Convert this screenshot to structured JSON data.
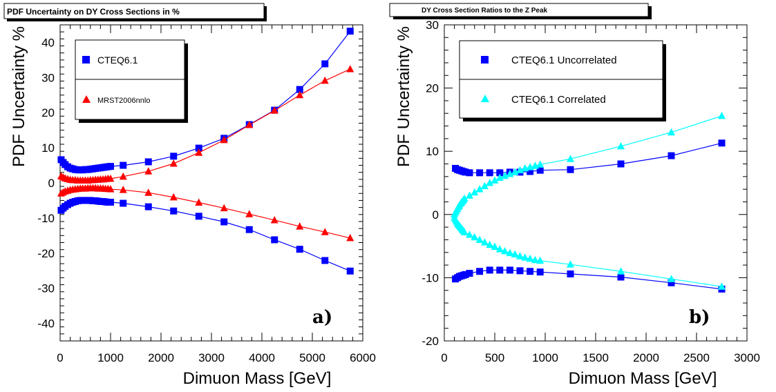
{
  "chart_data": [
    {
      "type": "line",
      "title": "PDF Uncertainty on DY Cross Sections in %",
      "xlabel": "Dimuon Mass [GeV]",
      "ylabel": "PDF Uncertainty %",
      "xlim": [
        0,
        6000
      ],
      "ylim": [
        -45,
        45
      ],
      "xticks": [
        0,
        1000,
        2000,
        3000,
        4000,
        5000,
        6000
      ],
      "yticks": [
        -40,
        -30,
        -20,
        -10,
        0,
        10,
        20,
        30,
        40
      ],
      "panel_label": "a)",
      "grid": false,
      "legend_position": "top-left",
      "legend": [
        {
          "name": "CTEQ6.1",
          "color": "#0000ff",
          "marker": "square"
        },
        {
          "name": "MRST2006nnlo",
          "color": "#ff0000",
          "marker": "triangle"
        }
      ],
      "series": [
        {
          "name": "CTEQ6.1",
          "color": "#0000ff",
          "marker": "square",
          "x": [
            20,
            60,
            100,
            150,
            200,
            250,
            300,
            350,
            400,
            450,
            500,
            550,
            600,
            650,
            700,
            750,
            800,
            850,
            900,
            950,
            1000,
            1250,
            1750,
            2250,
            2750,
            3250,
            3750,
            4250,
            4750,
            5250,
            5750
          ],
          "y": [
            6.6,
            5.8,
            5.2,
            4.6,
            4.2,
            4.0,
            3.8,
            3.7,
            3.7,
            3.7,
            3.8,
            3.8,
            3.9,
            4.0,
            4.1,
            4.2,
            4.3,
            4.4,
            4.5,
            4.6,
            4.7,
            5.0,
            6.0,
            7.6,
            9.9,
            12.7,
            16.6,
            20.7,
            26.6,
            33.9,
            43.2
          ]
        },
        {
          "name": "CTEQ6.1",
          "color": "#0000ff",
          "marker": "square",
          "x": [
            20,
            60,
            100,
            150,
            200,
            250,
            300,
            350,
            400,
            450,
            500,
            550,
            600,
            650,
            700,
            750,
            800,
            850,
            900,
            950,
            1000,
            1250,
            1750,
            2250,
            2750,
            3250,
            3750,
            4250,
            4750,
            5250,
            5750
          ],
          "y": [
            -7.8,
            -7.2,
            -6.7,
            -6.2,
            -5.8,
            -5.5,
            -5.3,
            -5.1,
            -5.0,
            -5.0,
            -5.0,
            -5.0,
            -5.0,
            -5.1,
            -5.1,
            -5.2,
            -5.3,
            -5.3,
            -5.4,
            -5.5,
            -5.5,
            -5.8,
            -6.8,
            -8.0,
            -9.5,
            -11.1,
            -13.3,
            -16.2,
            -18.9,
            -22.1,
            -25.1
          ]
        },
        {
          "name": "MRST2006nnlo",
          "color": "#ff0000",
          "marker": "triangle",
          "x": [
            20,
            60,
            100,
            150,
            200,
            250,
            300,
            350,
            400,
            450,
            500,
            550,
            600,
            650,
            700,
            750,
            800,
            850,
            900,
            950,
            1000,
            1250,
            1750,
            2250,
            2750,
            3250,
            3750,
            4250,
            4750,
            5250,
            5750
          ],
          "y": [
            1.9,
            1.6,
            1.3,
            1.1,
            0.9,
            0.8,
            0.8,
            0.7,
            0.7,
            0.7,
            0.7,
            0.7,
            0.8,
            0.8,
            0.9,
            0.9,
            1.0,
            1.0,
            1.1,
            1.2,
            1.2,
            1.8,
            3.3,
            5.5,
            8.6,
            12.2,
            16.5,
            20.6,
            25.0,
            29.1,
            32.4
          ]
        },
        {
          "name": "MRST2006nnlo",
          "color": "#ff0000",
          "marker": "triangle",
          "x": [
            20,
            60,
            100,
            150,
            200,
            250,
            300,
            350,
            400,
            450,
            500,
            550,
            600,
            650,
            700,
            750,
            800,
            850,
            900,
            950,
            1000,
            1250,
            1750,
            2250,
            2750,
            3250,
            3750,
            4250,
            4750,
            5250,
            5750
          ],
          "y": [
            -3.0,
            -2.7,
            -2.4,
            -2.2,
            -2.0,
            -1.9,
            -1.8,
            -1.7,
            -1.6,
            -1.6,
            -1.6,
            -1.5,
            -1.5,
            -1.5,
            -1.5,
            -1.6,
            -1.6,
            -1.6,
            -1.7,
            -1.7,
            -1.8,
            -2.0,
            -2.8,
            -4.1,
            -5.6,
            -7.2,
            -8.9,
            -10.6,
            -12.4,
            -14.0,
            -15.7
          ]
        }
      ]
    },
    {
      "type": "line",
      "title": "DY Cross Section Ratios to the Z Peak",
      "xlabel": "Dimuon Mass [GeV]",
      "ylabel": "PDF Uncertainty %",
      "xlim": [
        0,
        3000
      ],
      "ylim": [
        -20,
        30
      ],
      "xticks": [
        0,
        500,
        1000,
        1500,
        2000,
        2500,
        3000
      ],
      "yticks": [
        -20,
        -10,
        0,
        10,
        20,
        30
      ],
      "panel_label": "b)",
      "grid": false,
      "legend_position": "top-left",
      "legend": [
        {
          "name": "CTEQ6.1 Uncorrelated",
          "color": "#0000ff",
          "marker": "square"
        },
        {
          "name": "CTEQ6.1 Correlated",
          "color": "#00ffff",
          "marker": "triangle"
        }
      ],
      "series": [
        {
          "name": "CTEQ6.1 Uncorrelated",
          "color": "#0000ff",
          "marker": "square",
          "x": [
            110,
            130,
            150,
            170,
            190,
            210,
            250,
            350,
            450,
            550,
            650,
            750,
            850,
            950,
            1250,
            1750,
            2250,
            2750
          ],
          "y": [
            7.3,
            7.1,
            7.0,
            6.9,
            6.8,
            6.7,
            6.6,
            6.6,
            6.6,
            6.6,
            6.7,
            6.7,
            6.8,
            7.0,
            7.1,
            8.0,
            9.3,
            11.3
          ]
        },
        {
          "name": "CTEQ6.1 Uncorrelated",
          "color": "#0000ff",
          "marker": "square",
          "x": [
            110,
            130,
            150,
            170,
            190,
            210,
            250,
            350,
            450,
            550,
            650,
            750,
            850,
            950,
            1250,
            1750,
            2250,
            2750
          ],
          "y": [
            -10.2,
            -10.0,
            -9.8,
            -9.7,
            -9.6,
            -9.5,
            -9.3,
            -9.0,
            -8.8,
            -8.8,
            -8.8,
            -8.9,
            -9.0,
            -9.1,
            -9.4,
            -9.9,
            -10.8,
            -11.8
          ]
        },
        {
          "name": "CTEQ6.1 Correlated",
          "color": "#00ffff",
          "marker": "triangle",
          "x": [
            100,
            110,
            120,
            130,
            140,
            150,
            160,
            170,
            180,
            190,
            200,
            250,
            300,
            350,
            400,
            450,
            500,
            550,
            600,
            650,
            700,
            750,
            800,
            850,
            900,
            950,
            1250,
            1750,
            2250,
            2750
          ],
          "y": [
            0.0,
            0.3,
            0.6,
            0.9,
            1.2,
            1.4,
            1.7,
            1.9,
            2.1,
            2.3,
            2.5,
            3.0,
            3.5,
            4.0,
            4.5,
            5.0,
            5.4,
            5.8,
            6.1,
            6.4,
            6.7,
            7.0,
            7.3,
            7.5,
            7.7,
            7.9,
            8.8,
            10.8,
            13.0,
            15.6
          ]
        },
        {
          "name": "CTEQ6.1 Correlated",
          "color": "#00ffff",
          "marker": "triangle",
          "x": [
            100,
            110,
            120,
            130,
            140,
            150,
            160,
            170,
            180,
            190,
            200,
            250,
            300,
            350,
            400,
            450,
            500,
            550,
            600,
            650,
            700,
            750,
            800,
            850,
            900,
            950,
            1250,
            1750,
            2250,
            2750
          ],
          "y": [
            -0.5,
            -0.8,
            -1.1,
            -1.4,
            -1.6,
            -1.8,
            -2.0,
            -2.2,
            -2.4,
            -2.6,
            -2.8,
            -3.2,
            -3.6,
            -4.0,
            -4.4,
            -4.8,
            -5.1,
            -5.5,
            -5.8,
            -6.1,
            -6.3,
            -6.6,
            -6.8,
            -7.0,
            -7.2,
            -7.3,
            -7.9,
            -9.0,
            -10.2,
            -11.4
          ]
        }
      ]
    }
  ]
}
